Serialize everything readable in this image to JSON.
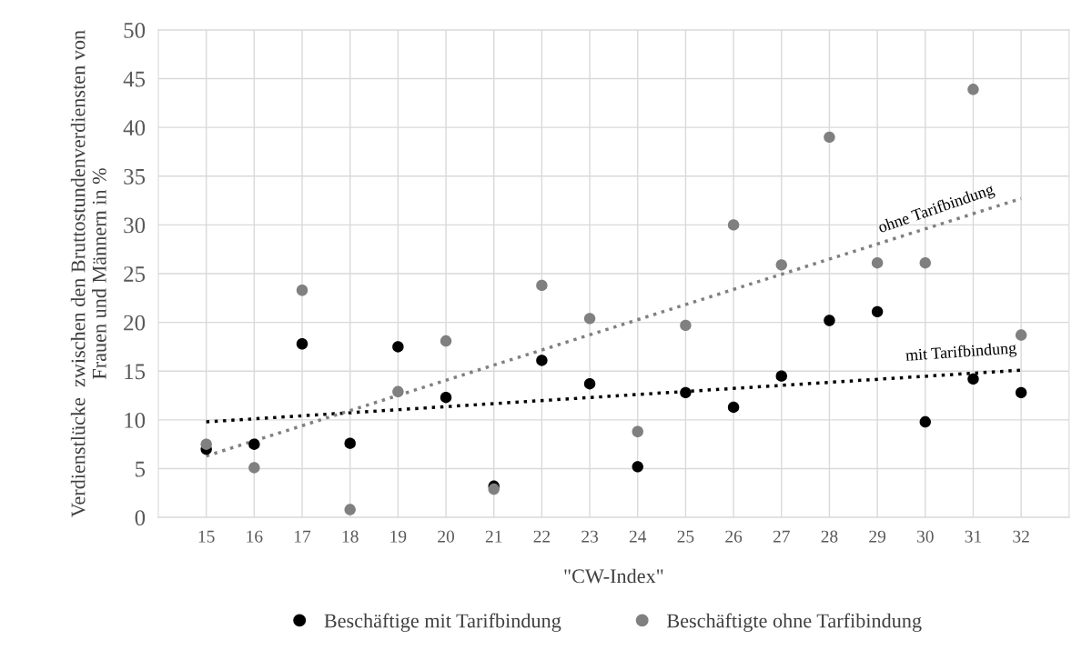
{
  "chart_data": {
    "type": "scatter",
    "xlabel": "\"CW-Index\"",
    "ylabel": "Verdienstlücke  zwischen den Bruttostundenverdiensten von\nFrauen und Männern in %",
    "xlim": [
      14,
      33
    ],
    "xticks": [
      15,
      16,
      17,
      18,
      19,
      20,
      21,
      22,
      23,
      24,
      25,
      26,
      27,
      28,
      29,
      30,
      31,
      32
    ],
    "ylim": [
      0,
      50
    ],
    "yticks": [
      0,
      5,
      10,
      15,
      20,
      25,
      30,
      35,
      40,
      45,
      50
    ],
    "grid": true,
    "legend": "bottom",
    "series": [
      {
        "name": "Beschäftige mit Tarifbindung",
        "marker": "circle",
        "color": "#000000",
        "x": [
          15,
          16,
          17,
          18,
          19,
          20,
          21,
          22,
          23,
          24,
          25,
          26,
          27,
          28,
          29,
          30,
          31,
          32
        ],
        "values": [
          7.0,
          7.5,
          17.8,
          7.6,
          17.5,
          12.3,
          3.2,
          16.1,
          13.7,
          5.2,
          12.8,
          11.3,
          14.5,
          20.2,
          21.1,
          9.8,
          14.2,
          12.8
        ]
      },
      {
        "name": "Beschäftigte ohne Tarfibindung",
        "marker": "circle",
        "color": "#808080",
        "x": [
          15,
          16,
          17,
          18,
          19,
          20,
          21,
          22,
          23,
          24,
          25,
          26,
          27,
          28,
          29,
          30,
          31,
          32
        ],
        "values": [
          7.5,
          5.1,
          23.3,
          0.8,
          12.9,
          18.1,
          2.9,
          23.8,
          20.4,
          8.8,
          19.7,
          30.0,
          25.9,
          39.0,
          26.1,
          26.1,
          43.9,
          18.7
        ]
      },
      {
        "type": "line",
        "marker": "none",
        "color": "#000000",
        "line_style": "dotted",
        "x": [
          15,
          32
        ],
        "values": [
          9.8,
          15.1
        ]
      },
      {
        "type": "line",
        "marker": "none",
        "color": "#808080",
        "line_style": "dotted",
        "x": [
          15,
          32
        ],
        "values": [
          6.3,
          32.7
        ]
      }
    ],
    "annotations": [
      "ohne Tarifbindung",
      "mit Tarifbindung"
    ]
  }
}
